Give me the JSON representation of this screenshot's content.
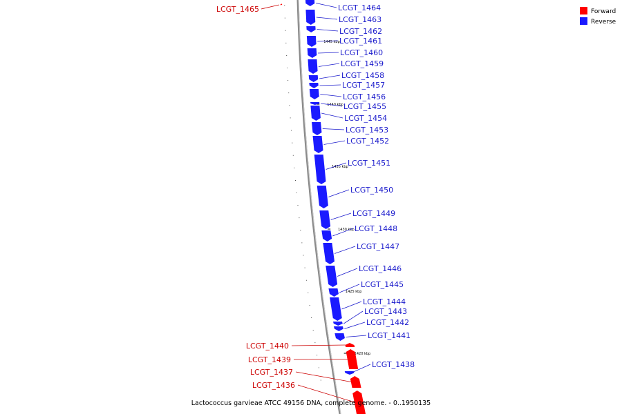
{
  "colors": {
    "forward": "#ff0000",
    "reverse": "#1a1aff",
    "reverse_label": "#1a1acc",
    "forward_label": "#cc0000",
    "backbone": "#888888"
  },
  "legend": [
    {
      "label": "Forward",
      "strand": "forward"
    },
    {
      "label": "Reverse",
      "strand": "reverse"
    }
  ],
  "caption": "Lactococcus garvieae ATCC 49156 DNA, complete genome. - 0..1950135",
  "ticks": [
    "1445 kbp",
    "1440 kbp",
    "1435 kbp",
    "1430 kbp",
    "1425 kbp",
    "1420 kbp"
  ],
  "genes": [
    {
      "label": "LCGT_1465",
      "strand": "forward"
    },
    {
      "label": "LCGT_1464",
      "strand": "reverse"
    },
    {
      "label": "LCGT_1463",
      "strand": "reverse"
    },
    {
      "label": "LCGT_1462",
      "strand": "reverse"
    },
    {
      "label": "LCGT_1461",
      "strand": "reverse"
    },
    {
      "label": "LCGT_1460",
      "strand": "reverse"
    },
    {
      "label": "LCGT_1459",
      "strand": "reverse"
    },
    {
      "label": "LCGT_1458",
      "strand": "reverse"
    },
    {
      "label": "LCGT_1457",
      "strand": "reverse"
    },
    {
      "label": "LCGT_1456",
      "strand": "reverse"
    },
    {
      "label": "LCGT_1455",
      "strand": "reverse"
    },
    {
      "label": "LCGT_1454",
      "strand": "reverse"
    },
    {
      "label": "LCGT_1453",
      "strand": "reverse"
    },
    {
      "label": "LCGT_1452",
      "strand": "reverse"
    },
    {
      "label": "LCGT_1451",
      "strand": "reverse"
    },
    {
      "label": "LCGT_1450",
      "strand": "reverse"
    },
    {
      "label": "LCGT_1449",
      "strand": "reverse"
    },
    {
      "label": "LCGT_1448",
      "strand": "reverse"
    },
    {
      "label": "LCGT_1447",
      "strand": "reverse"
    },
    {
      "label": "LCGT_1446",
      "strand": "reverse"
    },
    {
      "label": "LCGT_1445",
      "strand": "reverse"
    },
    {
      "label": "LCGT_1444",
      "strand": "reverse"
    },
    {
      "label": "LCGT_1443",
      "strand": "reverse"
    },
    {
      "label": "LCGT_1442",
      "strand": "reverse"
    },
    {
      "label": "LCGT_1441",
      "strand": "reverse"
    },
    {
      "label": "LCGT_1440",
      "strand": "forward"
    },
    {
      "label": "LCGT_1439",
      "strand": "forward"
    },
    {
      "label": "LCGT_1438",
      "strand": "reverse"
    },
    {
      "label": "LCGT_1437",
      "strand": "forward"
    },
    {
      "label": "LCGT_1436",
      "strand": "forward"
    }
  ]
}
